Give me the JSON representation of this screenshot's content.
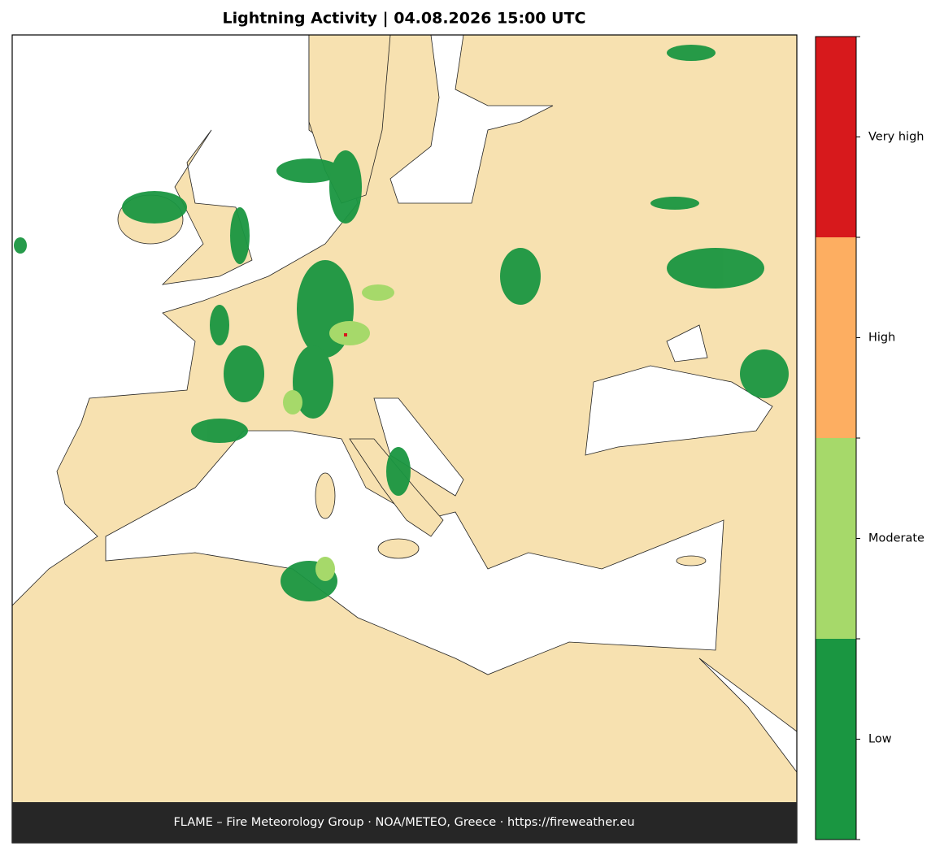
{
  "map": {
    "title": "Lightning Activity  |  04.08.2026 15:00 UTC",
    "footer": "FLAME – Fire Meteorology Group · NOA/METEO, Greece · https://fireweather.eu"
  },
  "legend": {
    "classes": [
      {
        "label": "Low",
        "color": "#1a9641"
      },
      {
        "label": "Moderate",
        "color": "#a6d96a"
      },
      {
        "label": "High",
        "color": "#fdae61"
      },
      {
        "label": "Very high",
        "color": "#d7191c"
      }
    ]
  }
}
